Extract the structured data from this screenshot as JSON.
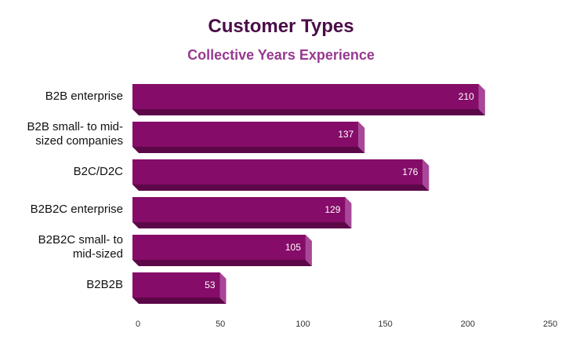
{
  "chart_data": {
    "type": "bar",
    "orientation": "horizontal",
    "title": "Customer Types",
    "subtitle": "Collective Years Experience",
    "categories": [
      "B2B enterprise",
      "B2B small- to mid-sized companies",
      "B2C/D2C",
      "B2B2C enterprise",
      "B2B2C small- to mid-sized",
      "B2B2B"
    ],
    "category_lines": [
      [
        "B2B enterprise"
      ],
      [
        "B2B small- to mid-",
        "sized companies"
      ],
      [
        "B2C/D2C"
      ],
      [
        "B2B2C enterprise"
      ],
      [
        "B2B2C small- to",
        "mid-sized"
      ],
      [
        "B2B2B"
      ]
    ],
    "values": [
      210,
      137,
      176,
      129,
      105,
      53
    ],
    "xlim": [
      0,
      250
    ],
    "xticks": [
      "0",
      "50",
      "100",
      "150",
      "200",
      "250"
    ],
    "xlabel": "",
    "ylabel": "",
    "grid": false,
    "colors": {
      "bar_front": "#850c68",
      "bar_side": "#a8479a",
      "bar_bottom": "#5c0848",
      "title": "#4a0d47",
      "subtitle": "#973a8f"
    }
  }
}
